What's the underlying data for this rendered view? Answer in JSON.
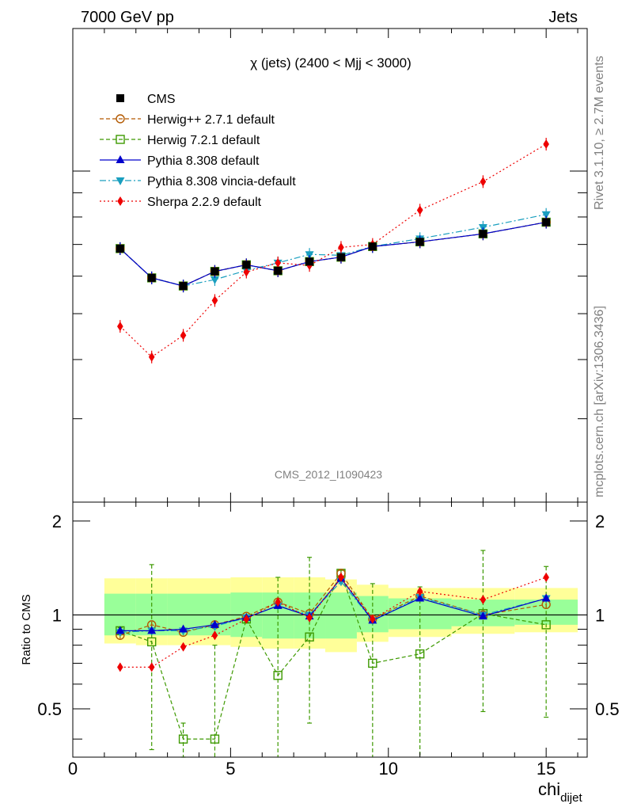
{
  "header": {
    "left": "7000 GeV pp",
    "right": "Jets"
  },
  "side": {
    "top": "Rivet 3.1.10, ≥ 2.7M events",
    "bottom": "mcplots.cern.ch [arXiv:1306.3436]"
  },
  "chart_data": [
    {
      "type": "line",
      "panel": "main",
      "title": "χ (jets) (2400 < Mjj < 3000)",
      "analysis_label": "CMS_2012_I1090423",
      "xlim": [
        0,
        16.3
      ],
      "log_y": true,
      "ytick_labels": [],
      "x": [
        1.5,
        2.5,
        3.5,
        4.5,
        5.5,
        6.5,
        7.5,
        8.5,
        9.5,
        11,
        13,
        15
      ],
      "legend": [
        "CMS",
        "Herwig++ 2.7.1 default",
        "Herwig 7.2.1 default",
        "Pythia 8.308 default",
        "Pythia 8.308 vincia-default",
        "Sherpa 2.2.9 default"
      ],
      "series": [
        {
          "name": "CMS",
          "color": "#000000",
          "marker": "square",
          "values": [
            0.0686,
            0.0595,
            0.0572,
            0.0614,
            0.0634,
            0.0616,
            0.0644,
            0.0658,
            0.0693,
            0.0709,
            0.0737,
            0.078
          ]
        },
        {
          "name": "Herwig++ 2.7.1 default",
          "color": "#b35900",
          "marker": "circle-open",
          "dash": "5,3",
          "values": [
            0.0686,
            0.0595,
            0.0572,
            0.0614,
            0.0634,
            0.0616,
            0.0644,
            0.0658,
            0.0693,
            0.0709,
            0.0737,
            0.078
          ]
        },
        {
          "name": "Herwig 7.2.1 default",
          "color": "#3d9900",
          "marker": "square-open",
          "dash": "5,3",
          "values": [
            0.0686,
            0.0595,
            0.0572,
            0.0614,
            0.0634,
            0.0616,
            0.0644,
            0.0658,
            0.0693,
            0.0709,
            0.0737,
            0.078
          ]
        },
        {
          "name": "Pythia 8.308 default",
          "color": "#0000cc",
          "marker": "triangle-up",
          "dash": "",
          "values": [
            0.0686,
            0.0595,
            0.0572,
            0.0614,
            0.0634,
            0.0616,
            0.0644,
            0.0658,
            0.0693,
            0.0709,
            0.0737,
            0.078
          ]
        },
        {
          "name": "Pythia 8.308 vincia-default",
          "color": "#1a9fbf",
          "marker": "triangle-down",
          "dash": "8,3,2,3",
          "values": [
            0.0686,
            0.0595,
            0.0572,
            0.059,
            0.0617,
            0.064,
            0.0667,
            0.0664,
            0.0693,
            0.072,
            0.0761,
            0.081
          ]
        },
        {
          "name": "Sherpa 2.2.9 default",
          "color": "#ee0000",
          "marker": "diamond",
          "dash": "2,3",
          "values": [
            0.047,
            0.0405,
            0.045,
            0.0533,
            0.0612,
            0.064,
            0.0632,
            0.069,
            0.07,
            0.0827,
            0.095,
            0.114
          ]
        }
      ]
    },
    {
      "type": "line",
      "panel": "ratio",
      "ylabel": "Ratio to CMS",
      "xlabel": "chi",
      "xlabel_sub": "dijet",
      "xlim": [
        0,
        16.3
      ],
      "ylim": [
        0.35,
        2.3
      ],
      "log_y": true,
      "xtick_labels": [
        "0",
        "5",
        "10",
        "15"
      ],
      "ytick_labels": [
        "0.5",
        "1",
        "2"
      ],
      "x": [
        1.5,
        2.5,
        3.5,
        4.5,
        5.5,
        6.5,
        7.5,
        8.5,
        9.5,
        11,
        13,
        15
      ],
      "bands": {
        "edges": [
          1,
          2,
          3,
          4,
          5,
          6,
          7,
          8,
          9,
          10,
          12,
          14,
          16
        ],
        "yellow": [
          [
            0.81,
            1.31
          ],
          [
            0.8,
            1.31
          ],
          [
            0.8,
            1.31
          ],
          [
            0.8,
            1.31
          ],
          [
            0.79,
            1.32
          ],
          [
            0.78,
            1.32
          ],
          [
            0.78,
            1.32
          ],
          [
            0.76,
            1.3
          ],
          [
            0.82,
            1.25
          ],
          [
            0.85,
            1.22
          ],
          [
            0.87,
            1.22
          ],
          [
            0.88,
            1.22
          ]
        ],
        "green": [
          [
            0.86,
            1.17
          ],
          [
            0.86,
            1.17
          ],
          [
            0.86,
            1.17
          ],
          [
            0.86,
            1.17
          ],
          [
            0.85,
            1.18
          ],
          [
            0.84,
            1.18
          ],
          [
            0.84,
            1.18
          ],
          [
            0.84,
            1.18
          ],
          [
            0.88,
            1.15
          ],
          [
            0.9,
            1.13
          ],
          [
            0.92,
            1.12
          ],
          [
            0.93,
            1.12
          ]
        ]
      },
      "series": [
        {
          "name": "Herwig++ 2.7.1 default",
          "values": [
            0.86,
            0.93,
            0.88,
            0.93,
            0.99,
            1.1,
            1.01,
            1.36,
            0.97,
            1.15,
            1.0,
            1.08
          ]
        },
        {
          "name": "Herwig 7.2.1 default",
          "values": [
            0.89,
            0.82,
            0.4,
            0.4,
            0.97,
            0.64,
            0.85,
            1.36,
            0.7,
            0.75,
            1.01,
            0.93
          ],
          "err_low": [
            0.02,
            0.45,
            0.05,
            0.4,
            0.02,
            0.3,
            0.4,
            0.03,
            0.4,
            0.4,
            0.52,
            0.46
          ],
          "err_high": [
            0.02,
            0.63,
            0.05,
            0.4,
            0.02,
            0.68,
            0.68,
            0.03,
            0.56,
            0.48,
            0.6,
            0.5
          ]
        },
        {
          "name": "Pythia 8.308 default",
          "values": [
            0.89,
            0.89,
            0.9,
            0.93,
            0.98,
            1.07,
            0.99,
            1.31,
            0.96,
            1.13,
            0.99,
            1.13
          ]
        },
        {
          "name": "Pythia 8.308 vincia-default",
          "values": [
            0.88,
            0.89,
            0.89,
            0.92,
            0.98,
            1.07,
            1.0,
            1.28,
            0.96,
            1.14,
            1.0,
            1.13
          ]
        },
        {
          "name": "Sherpa 2.2.9 default",
          "values": [
            0.68,
            0.68,
            0.79,
            0.86,
            0.97,
            1.1,
            0.98,
            1.32,
            0.97,
            1.19,
            1.12,
            1.32
          ]
        }
      ]
    }
  ]
}
